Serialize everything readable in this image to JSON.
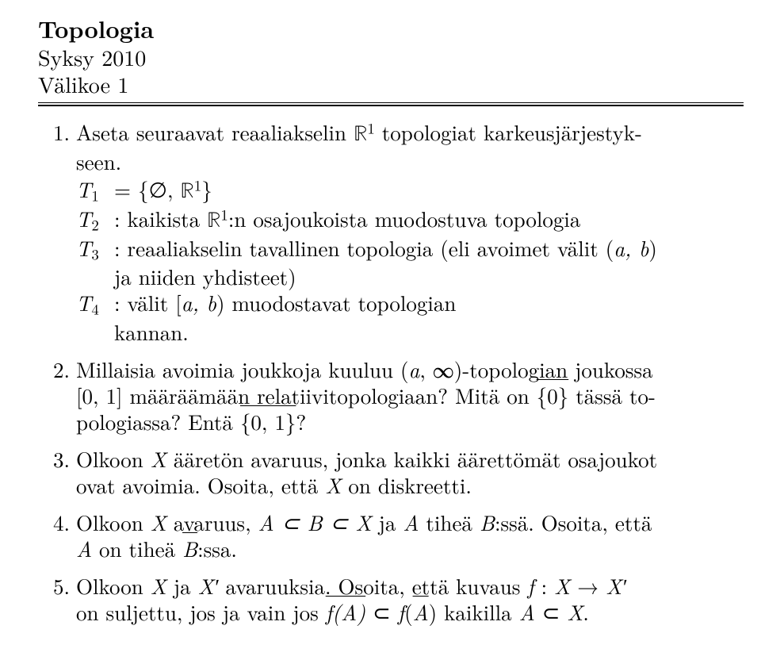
{
  "header": {
    "course": "Topologia",
    "term": "Syksy 2010",
    "exam": "Välikoe 1"
  },
  "problems": {
    "p1": {
      "num": "1.",
      "intro_a": "Aseta seuraavat reaaliakselin ",
      "intro_b": " topologiat karkeusjärjestyk-",
      "intro_c": "seen.",
      "t1_lhs": "T",
      "t1_eq": " = {∅, ",
      "t1_end": "}",
      "t2_lbl": "T",
      "t2_txt_a": " : kaikista ",
      "t2_txt_b": ":n osajoukoista muodostuva topologia",
      "t3_lbl": "T",
      "t3_txt_a": " : reaaliakselin tavallinen topologia (eli avoimet välit (",
      "t3_txt_b": ")",
      "t3_cont": "ja niiden yhdisteet)",
      "t4_lbl": "T",
      "t4_txt_a": " : välit [",
      "t4_txt_b": ") muodostavat topologian",
      "t4_cont": "kannan."
    },
    "p2": {
      "num": "2.",
      "line1_a": "Millaisia avoimia joukkoja kuuluu (",
      "line1_b": ", ∞)-topologian joukossa",
      "line2_a": "[0, 1] määräämään relatiivitopologiaan? Mitä on ",
      "line2_b": " tässä to-",
      "line3_a": "pologiassa? Entä ",
      "line3_b": "?",
      "set0": "{0}",
      "set01": "{0, 1}"
    },
    "p3": {
      "num": "3.",
      "line1_a": "Olkoon ",
      "line1_b": " ääretön avaruus, jonka kaikki äärettömät osajoukot",
      "line2_a": "ovat avoimia. Osoita, että ",
      "line2_b": " on diskreetti."
    },
    "p4": {
      "num": "4.",
      "line1_a": "Olkoon ",
      "line1_b": " avaruus, ",
      "line1_c": " ja ",
      "line1_d": " tiheä ",
      "line1_e": ":ssä. Osoita, että",
      "line2_a": " on tiheä ",
      "line2_b": ":ssa."
    },
    "p5": {
      "num": "5.",
      "line1_a": "Olkoon ",
      "line1_b": " ja ",
      "line1_c": " avaruuksia. Osoita, että kuvaus ",
      "line1_d": " : ",
      "line1_e": " → ",
      "line2_a": "on suljettu, jos ja vain jos ",
      "line2_b": " ⊂ ",
      "line2_c": " kaikilla ",
      "line2_d": " ⊂ ",
      "line2_e": "."
    }
  },
  "sym": {
    "R": "ℝ",
    "a": "a",
    "b": "b",
    "ab": "a, b",
    "X": "X",
    "Xp": "X′",
    "A": "A",
    "B": "B",
    "f": "f",
    "AsubBsubX": "A ⊂ B ⊂ X",
    "fA": "f(A)",
    "fAbar": "f(A)",
    "one": "1",
    "two": "2",
    "three": "3",
    "four": "4"
  }
}
